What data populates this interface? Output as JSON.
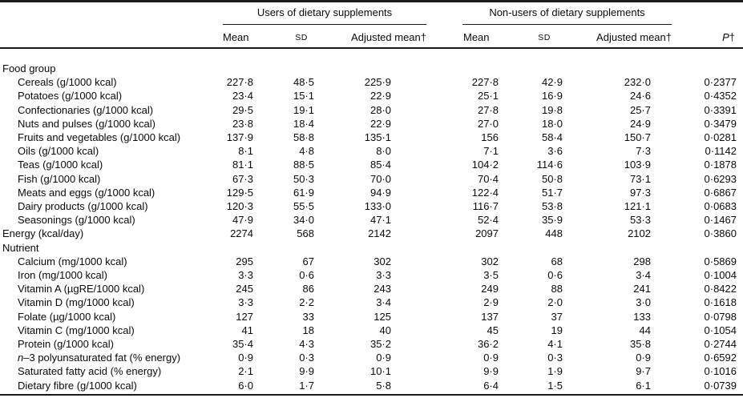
{
  "table": {
    "group_headers": [
      {
        "label": "Users of dietary supplements"
      },
      {
        "label": "Non-users of dietary supplements"
      }
    ],
    "col_headers": {
      "mean": "Mean",
      "sd": "SD",
      "adjusted": "Adjusted mean†",
      "p": "P",
      "p_dagger": "†"
    },
    "rows": [
      {
        "label": "Food group",
        "section": true,
        "values": []
      },
      {
        "label": "Cereals (g/1000 kcal)",
        "values": [
          "227·8",
          "48·5",
          "225·9",
          "227·8",
          "42·9",
          "232·0",
          "0·2377"
        ]
      },
      {
        "label": "Potatoes (g/1000 kcal)",
        "values": [
          "23·4",
          "15·1",
          "22·9",
          "25·1",
          "16·9",
          "24·6",
          "0·4352"
        ]
      },
      {
        "label": "Confectionaries (g/1000 kcal)",
        "values": [
          "29·5",
          "19·1",
          "28·0",
          "27·8",
          "19·8",
          "25·7",
          "0·3391"
        ]
      },
      {
        "label": "Nuts and pulses (g/1000 kcal)",
        "values": [
          "23·8",
          "18·4",
          "22·9",
          "27·0",
          "18·0",
          "24·9",
          "0·3479"
        ]
      },
      {
        "label": "Fruits and vegetables (g/1000 kcal)",
        "values": [
          "137·9",
          "58·8",
          "135·1",
          "156",
          "58·4",
          "150·7",
          "0·0281"
        ]
      },
      {
        "label": "Oils (g/1000 kcal)",
        "values": [
          "8·1",
          "4·8",
          "8·0",
          "7·1",
          "3·6",
          "7·3",
          "0·1142"
        ]
      },
      {
        "label": "Teas (g/1000 kcal)",
        "values": [
          "81·1",
          "88·5",
          "85·4",
          "104·2",
          "114·6",
          "103·9",
          "0·1878"
        ]
      },
      {
        "label": "Fish (g/1000 kcal)",
        "values": [
          "67·3",
          "50·3",
          "70·0",
          "70·4",
          "50·8",
          "73·1",
          "0·6293"
        ]
      },
      {
        "label": "Meats and eggs (g/1000 kcal)",
        "values": [
          "129·5",
          "61·9",
          "94·9",
          "122·4",
          "51·7",
          "97·3",
          "0·6867"
        ]
      },
      {
        "label": "Dairy products (g/1000 kcal)",
        "values": [
          "120·3",
          "55·5",
          "133·0",
          "116·7",
          "53·8",
          "121·1",
          "0·0683"
        ]
      },
      {
        "label": "Seasonings (g/1000 kcal)",
        "values": [
          "47·9",
          "34·0",
          "47·1",
          "52·4",
          "35·9",
          "53·3",
          "0·1467"
        ]
      },
      {
        "label": "Energy (kcal/day)",
        "section": true,
        "values": [
          "2274",
          "568",
          "2142",
          "2097",
          "448",
          "2102",
          "0·3860"
        ]
      },
      {
        "label": "Nutrient",
        "section": true,
        "values": []
      },
      {
        "label": "Calcium (mg/1000 kcal)",
        "values": [
          "295",
          "67",
          "302",
          "302",
          "68",
          "298",
          "0·5869"
        ]
      },
      {
        "label": "Iron (mg/1000 kcal)",
        "values": [
          "3·3",
          "0·6",
          "3·3",
          "3·5",
          "0·6",
          "3·4",
          "0·1004"
        ]
      },
      {
        "label": "Vitamin A (µgRE/1000 kcal)",
        "values": [
          "245",
          "86",
          "243",
          "249",
          "88",
          "241",
          "0·8422"
        ]
      },
      {
        "label": "Vitamin D (mg/1000 kcal)",
        "values": [
          "3·3",
          "2·2",
          "3·4",
          "2·9",
          "2·0",
          "3·0",
          "0·1618"
        ]
      },
      {
        "label": "Folate (µg/1000 kcal)",
        "values": [
          "127",
          "33",
          "125",
          "137",
          "37",
          "133",
          "0·0798"
        ]
      },
      {
        "label": "Vitamin C (mg/1000 kcal)",
        "values": [
          "41",
          "18",
          "40",
          "45",
          "19",
          "44",
          "0·1054"
        ]
      },
      {
        "label": "Protein (g/1000 kcal)",
        "values": [
          "35·4",
          "4·3",
          "35·2",
          "36·2",
          "4·1",
          "35·8",
          "0·2744"
        ]
      },
      {
        "label": "n–3 polyunsaturated fat (% energy)",
        "italic_lead": 1,
        "values": [
          "0·9",
          "0·3",
          "0·9",
          "0·9",
          "0·3",
          "0·9",
          "0·6592"
        ]
      },
      {
        "label": "Saturated fatty acid (% energy)",
        "values": [
          "2·1",
          "9·9",
          "10·1",
          "9·9",
          "1·9",
          "9·7",
          "0·1016"
        ]
      },
      {
        "label": "Dietary fibre (g/1000 kcal)",
        "values": [
          "6·0",
          "1·7",
          "5·8",
          "6·4",
          "1·5",
          "6·1",
          "0·0739"
        ]
      }
    ]
  }
}
